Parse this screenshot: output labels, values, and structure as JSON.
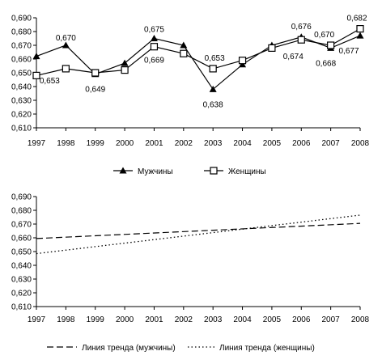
{
  "chart_data": [
    {
      "type": "line",
      "categories": [
        "1997",
        "1998",
        "1999",
        "2000",
        "2001",
        "2002",
        "2003",
        "2004",
        "2005",
        "2006",
        "2007",
        "2008"
      ],
      "y_ticks": [
        "0,610",
        "0,620",
        "0,630",
        "0,640",
        "0,650",
        "0,660",
        "0,670",
        "0,680",
        "0,690"
      ],
      "ylim": [
        0.61,
        0.69
      ],
      "grid": false,
      "legend_position": "bottom",
      "series": [
        {
          "name": "Мужчины",
          "marker": "triangle-filled",
          "values": [
            0.662,
            0.67,
            0.649,
            0.657,
            0.675,
            0.67,
            0.638,
            0.656,
            0.67,
            0.676,
            0.668,
            0.677
          ]
        },
        {
          "name": "Женщины",
          "marker": "square-open",
          "values": [
            0.648,
            0.653,
            0.65,
            0.652,
            0.669,
            0.664,
            0.653,
            0.659,
            0.668,
            0.674,
            0.67,
            0.682
          ]
        }
      ],
      "data_labels": [
        {
          "text": "0,670",
          "category": "1998"
        },
        {
          "text": "0,653",
          "category": "1998"
        },
        {
          "text": "0,649",
          "category": "1999"
        },
        {
          "text": "0,675",
          "category": "2001"
        },
        {
          "text": "0,669",
          "category": "2001"
        },
        {
          "text": "0,653",
          "category": "2003"
        },
        {
          "text": "0,638",
          "category": "2003"
        },
        {
          "text": "0,676",
          "category": "2006"
        },
        {
          "text": "0,674",
          "category": "2006"
        },
        {
          "text": "0,670",
          "category": "2007"
        },
        {
          "text": "0,668",
          "category": "2007"
        },
        {
          "text": "0,682",
          "category": "2008"
        },
        {
          "text": "0,677",
          "category": "2008"
        }
      ]
    },
    {
      "type": "line",
      "categories": [
        "1997",
        "1998",
        "1999",
        "2000",
        "2001",
        "2002",
        "2003",
        "2004",
        "2005",
        "2006",
        "2007",
        "2008"
      ],
      "y_ticks": [
        "0,610",
        "0,620",
        "0,630",
        "0,640",
        "0,650",
        "0,660",
        "0,670",
        "0,680",
        "0,690"
      ],
      "ylim": [
        0.61,
        0.69
      ],
      "grid": false,
      "legend_position": "bottom",
      "series": [
        {
          "name": "Линия тренда (мужчины)",
          "style": "dashed",
          "start": 0.6595,
          "end": 0.6705
        },
        {
          "name": "Линия тренда (женщины)",
          "style": "dotted",
          "start": 0.6485,
          "end": 0.6765
        }
      ]
    }
  ]
}
